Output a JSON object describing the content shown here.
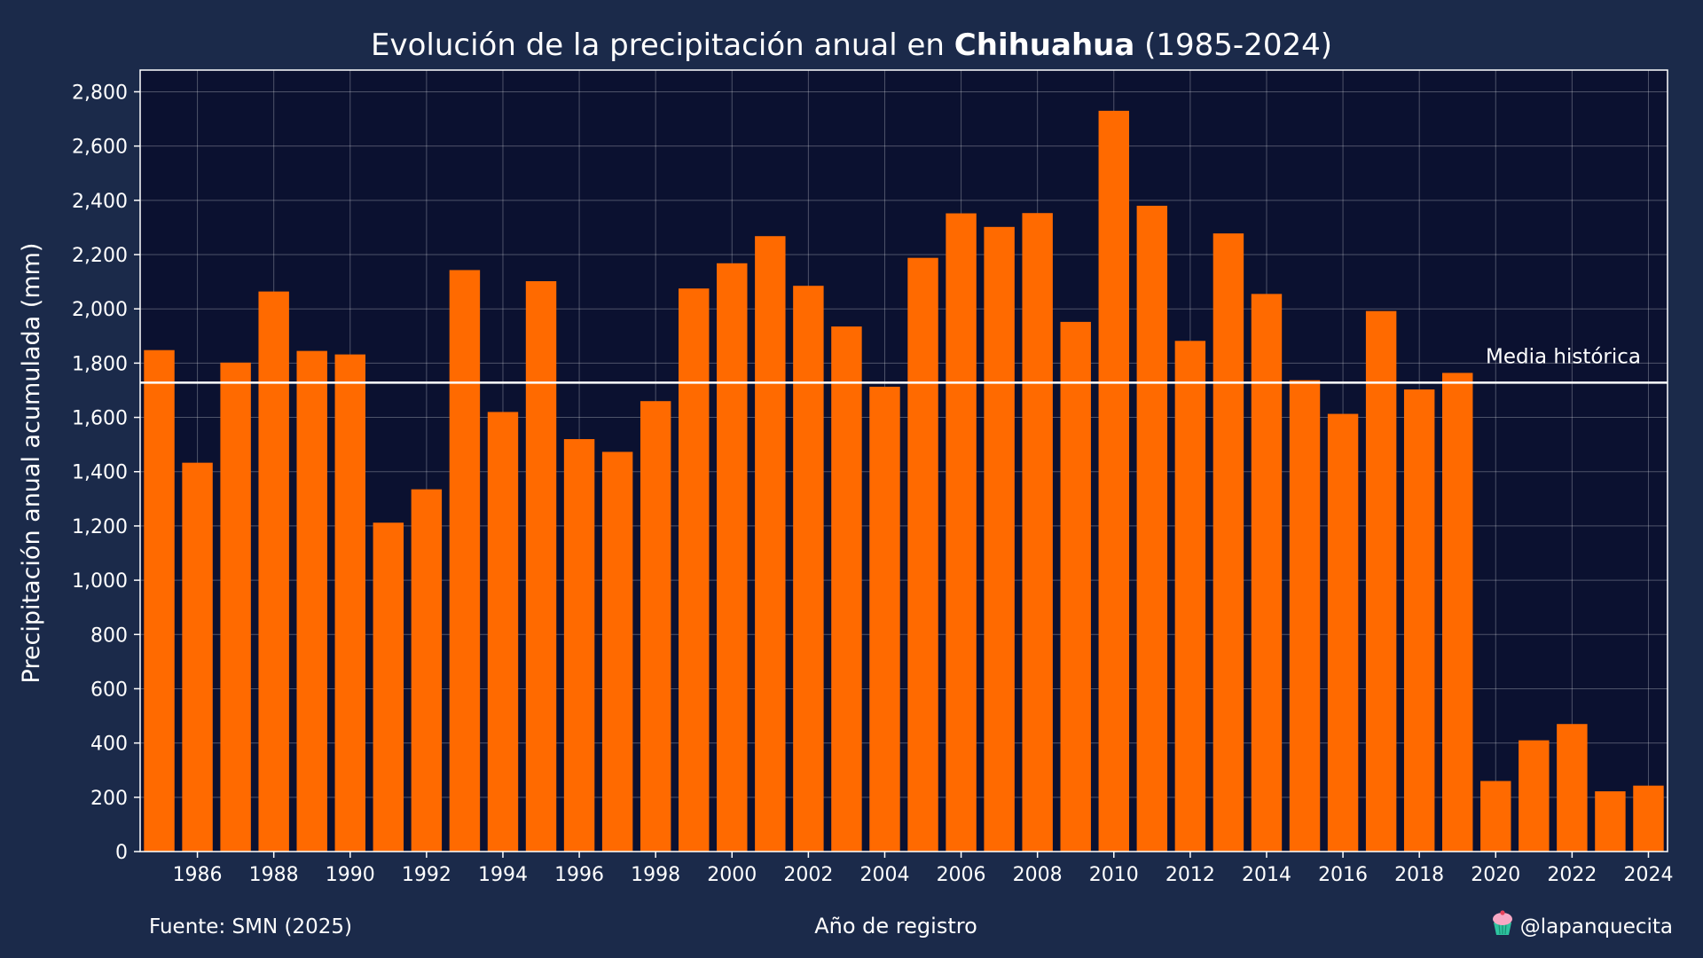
{
  "chart_data": {
    "type": "bar",
    "title": {
      "prefix": "Evolución de la precipitación anual en ",
      "highlight": "Chihuahua",
      "suffix": " (1985-2024)"
    },
    "xlabel": "Año de registro",
    "ylabel": "Precipitación anual acumulada (mm)",
    "source": "Fuente: SMN (2025)",
    "credit": "@lapanquecita",
    "credit_icon": "cupcake-icon",
    "categories": [
      1985,
      1986,
      1987,
      1988,
      1989,
      1990,
      1991,
      1992,
      1993,
      1994,
      1995,
      1996,
      1997,
      1998,
      1999,
      2000,
      2001,
      2002,
      2003,
      2004,
      2005,
      2006,
      2007,
      2008,
      2009,
      2010,
      2011,
      2012,
      2013,
      2014,
      2015,
      2016,
      2017,
      2018,
      2019,
      2020,
      2021,
      2022,
      2023,
      2024
    ],
    "values": [
      1848,
      1433,
      1802,
      2064,
      1845,
      1832,
      1212,
      1335,
      2143,
      1620,
      2102,
      1520,
      1473,
      1660,
      2075,
      2168,
      2268,
      2085,
      1935,
      1713,
      2188,
      2352,
      2302,
      2353,
      1952,
      2730,
      2380,
      1882,
      2278,
      2055,
      1737,
      1613,
      1992,
      1703,
      1764,
      260,
      410,
      470,
      222,
      243
    ],
    "x_tick_labels": [
      "1986",
      "1988",
      "1990",
      "1992",
      "1994",
      "1996",
      "1998",
      "2000",
      "2002",
      "2004",
      "2006",
      "2008",
      "2010",
      "2012",
      "2014",
      "2016",
      "2018",
      "2020",
      "2022",
      "2024"
    ],
    "y_tick_values": [
      0,
      200,
      400,
      600,
      800,
      1000,
      1200,
      1400,
      1600,
      1800,
      2000,
      2200,
      2400,
      2600,
      2800
    ],
    "y_tick_labels": [
      "0",
      "200",
      "400",
      "600",
      "800",
      "1,000",
      "1,200",
      "1,400",
      "1,600",
      "1,800",
      "2,000",
      "2,200",
      "2,400",
      "2,600",
      "2,800"
    ],
    "ylim": [
      0,
      2880
    ],
    "xlim": [
      1984.5,
      2024.5
    ],
    "grid": true,
    "mean_line": {
      "value": 1728,
      "label": "Media histórica"
    },
    "colors": {
      "background": "#1b2a4a",
      "plot_background": "#0b1130",
      "bar": "#ff6a00",
      "text": "#ffffff"
    }
  }
}
